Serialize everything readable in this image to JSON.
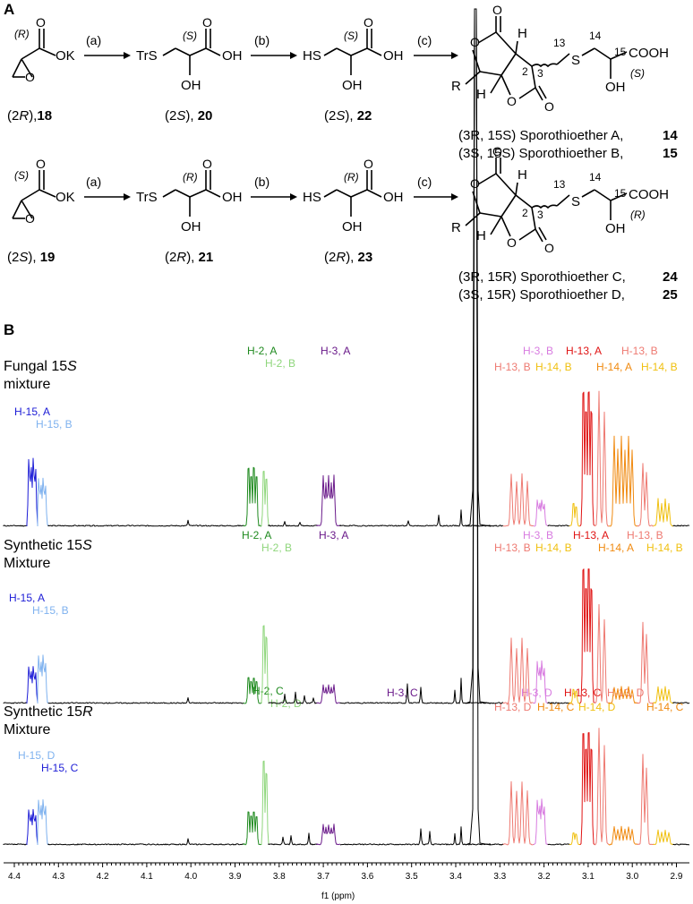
{
  "panel_a": {
    "label": "A",
    "rows": [
      {
        "start_stereo": "(R)",
        "start_group": "OK",
        "start_caption": "(2",
        "start_caption_it": "R",
        "start_caption_end": "),",
        "start_num": "18",
        "step_a": "(a)",
        "step_b": "(b)",
        "step_c": "(c)",
        "i1_group": "TrS",
        "i1_stereo": "(S)",
        "i1_oh": "OH",
        "i1_acid": "OH",
        "i1_caption": "(2",
        "i1_caption_it": "S",
        "i1_caption_end": "),",
        "i1_num": "20",
        "i2_group": "HS",
        "i2_stereo": "(S)",
        "i2_oh": "OH",
        "i2_acid": "OH",
        "i2_caption": "(2",
        "i2_caption_it": "S",
        "i2_caption_end": "),",
        "i2_num": "22",
        "p_r": "R",
        "p_h1": "H",
        "p_h2": "H",
        "p_n2": "2",
        "p_n3": "3",
        "p_n13": "13",
        "p_n14": "14",
        "p_n15": "15",
        "p_s": "S",
        "p_cooh": "COOH",
        "p_oh": "OH",
        "p_stereo": "(S)",
        "prod1": "(3R, 15S) Sporothioether A,",
        "prod1_num": "14",
        "prod2": "(3S, 15S) Sporothioether B,",
        "prod2_num": "15"
      },
      {
        "start_stereo": "(S)",
        "start_group": "OK",
        "start_caption": "(2",
        "start_caption_it": "S",
        "start_caption_end": "),",
        "start_num": "19",
        "step_a": "(a)",
        "step_b": "(b)",
        "step_c": "(c)",
        "i1_group": "TrS",
        "i1_stereo": "(R)",
        "i1_oh": "OH",
        "i1_acid": "OH",
        "i1_caption": "(2",
        "i1_caption_it": "R",
        "i1_caption_end": "),",
        "i1_num": "21",
        "i2_group": "HS",
        "i2_stereo": "(R)",
        "i2_oh": "OH",
        "i2_acid": "OH",
        "i2_caption": "(2",
        "i2_caption_it": "R",
        "i2_caption_end": "),",
        "i2_num": "23",
        "p_r": "R",
        "p_h1": "H",
        "p_h2": "H",
        "p_n2": "2",
        "p_n3": "3",
        "p_n13": "13",
        "p_n14": "14",
        "p_n15": "15",
        "p_s": "S",
        "p_cooh": "COOH",
        "p_oh": "OH",
        "p_stereo": "(R)",
        "prod1": "(3R, 15R) Sporothioether C,",
        "prod1_num": "24",
        "prod2": "(3S, 15R) Sporothioether D,",
        "prod2_num": "25"
      }
    ]
  },
  "panel_b": {
    "label": "B",
    "spectra": [
      {
        "title_line1": "Fungal 15",
        "title_it": "S",
        "title_line2": "mixture",
        "labels": [
          {
            "text": "H-15, A",
            "color": "#1c1cd6"
          },
          {
            "text": "H-15, B",
            "color": "#7fb2ef"
          },
          {
            "text": "H-2, A",
            "color": "#1f8a1f"
          },
          {
            "text": "H-2, B",
            "color": "#8fd67c"
          },
          {
            "text": "H-3, A",
            "color": "#6a1a8a"
          },
          {
            "text": "H-3, B",
            "color": "#d87ce0"
          },
          {
            "text": "H-13, A",
            "color": "#e01414"
          },
          {
            "text": "H-13, B",
            "color": "#ee7a72"
          },
          {
            "text": "H-13, B",
            "color": "#ee7a72"
          },
          {
            "text": "H-14, B",
            "color": "#f0c010"
          },
          {
            "text": "H-14, A",
            "color": "#f08a10"
          },
          {
            "text": "H-14, B",
            "color": "#f0c010"
          }
        ]
      },
      {
        "title_line1": "Synthetic 15",
        "title_it": "S",
        "title_line2": "Mixture",
        "labels": [
          {
            "text": "H-15, A",
            "color": "#1c1cd6"
          },
          {
            "text": "H-15, B",
            "color": "#7fb2ef"
          },
          {
            "text": "H-2, A",
            "color": "#1f8a1f"
          },
          {
            "text": "H-2, B",
            "color": "#8fd67c"
          },
          {
            "text": "H-3, A",
            "color": "#6a1a8a"
          },
          {
            "text": "H-3, B",
            "color": "#d87ce0"
          },
          {
            "text": "H-13, A",
            "color": "#e01414"
          },
          {
            "text": "H-13, B",
            "color": "#ee7a72"
          },
          {
            "text": "H-13, B",
            "color": "#ee7a72"
          },
          {
            "text": "H-14, B",
            "color": "#f0c010"
          },
          {
            "text": "H-14, A",
            "color": "#f08a10"
          },
          {
            "text": "H-14, B",
            "color": "#f0c010"
          }
        ]
      },
      {
        "title_line1": "Synthetic 15",
        "title_it": "R",
        "title_line2": "Mixture",
        "labels": [
          {
            "text": "H-15, D",
            "color": "#7fb2ef"
          },
          {
            "text": "H-15, C",
            "color": "#1c1cd6"
          },
          {
            "text": "H-2, C",
            "color": "#1f8a1f"
          },
          {
            "text": "H-2, D",
            "color": "#8fd67c"
          },
          {
            "text": "H-3, C",
            "color": "#6a1a8a"
          },
          {
            "text": "H-3, D",
            "color": "#d87ce0"
          },
          {
            "text": "H-13, C",
            "color": "#e01414"
          },
          {
            "text": "H-13, D",
            "color": "#ee7a72"
          },
          {
            "text": "H-13, D",
            "color": "#ee7a72"
          },
          {
            "text": "H-14, C",
            "color": "#f08a10"
          },
          {
            "text": "H-14, D",
            "color": "#f0c010"
          },
          {
            "text": "H-14, C",
            "color": "#f08a10"
          }
        ]
      }
    ],
    "axis": {
      "ticks": [
        "4.4",
        "4.3",
        "4.2",
        "4.1",
        "4.0",
        "3.9",
        "3.8",
        "3.7",
        "3.6",
        "3.5",
        "3.4",
        "3.3",
        "3.2",
        "3.1",
        "3.0",
        "2.9"
      ],
      "xlabel": "f1 (ppm)"
    }
  },
  "colors": {
    "blue": "#1c1cd6",
    "lightblue": "#7fb2ef",
    "green": "#1f8a1f",
    "lightgreen": "#8fd67c",
    "purple": "#6a1a8a",
    "lavender": "#d87ce0",
    "red": "#e01414",
    "salmon": "#ee7a72",
    "orange": "#f08a10",
    "yellow": "#f0c010"
  }
}
